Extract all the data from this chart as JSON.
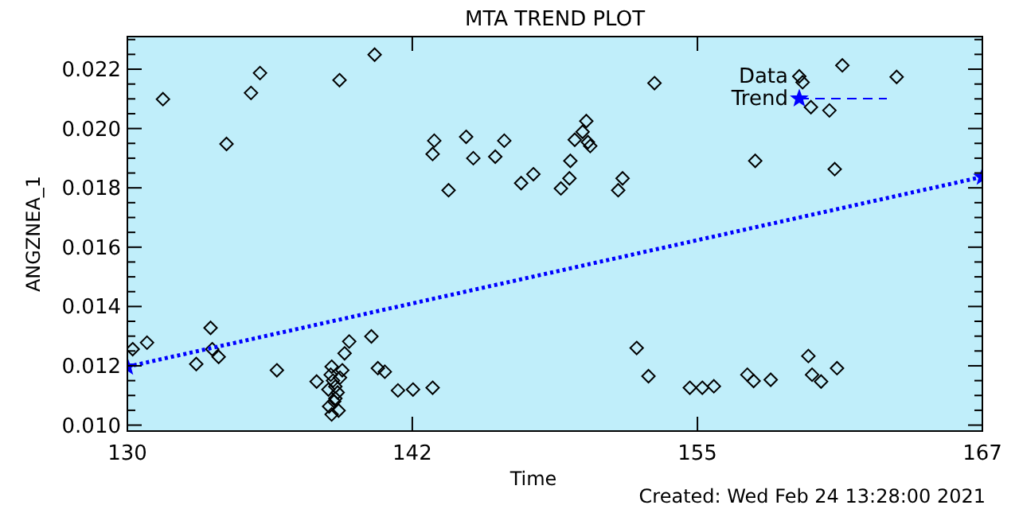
{
  "chart_data": {
    "type": "scatter",
    "title": "MTA TREND PLOT",
    "xlabel": "Time",
    "ylabel": "ANGZNEA_1",
    "annotations": [
      "Created: Wed Feb 24 13:28:00 2021"
    ],
    "xlim": [
      130,
      167
    ],
    "xticks": [
      130,
      {
        "value": 142.33,
        "label": "142"
      },
      {
        "value": 154.67,
        "label": "155"
      },
      167
    ],
    "ylim": [
      0.0098,
      0.0231
    ],
    "yticks": [
      {
        "value": 0.01,
        "label": "0.010"
      },
      {
        "value": 0.0105,
        "label": null
      },
      {
        "value": 0.011,
        "label": null
      },
      {
        "value": 0.0115,
        "label": null
      },
      {
        "value": 0.012,
        "label": "0.012"
      },
      {
        "value": 0.0125,
        "label": null
      },
      {
        "value": 0.013,
        "label": null
      },
      {
        "value": 0.0135,
        "label": null
      },
      {
        "value": 0.014,
        "label": "0.014"
      },
      {
        "value": 0.0145,
        "label": null
      },
      {
        "value": 0.015,
        "label": null
      },
      {
        "value": 0.0155,
        "label": null
      },
      {
        "value": 0.016,
        "label": "0.016"
      },
      {
        "value": 0.0165,
        "label": null
      },
      {
        "value": 0.017,
        "label": null
      },
      {
        "value": 0.0175,
        "label": null
      },
      {
        "value": 0.018,
        "label": "0.018"
      },
      {
        "value": 0.0185,
        "label": null
      },
      {
        "value": 0.019,
        "label": null
      },
      {
        "value": 0.0195,
        "label": null
      },
      {
        "value": 0.02,
        "label": "0.020"
      },
      {
        "value": 0.0205,
        "label": null
      },
      {
        "value": 0.021,
        "label": null
      },
      {
        "value": 0.0215,
        "label": null
      },
      {
        "value": 0.022,
        "label": "0.022"
      },
      {
        "value": 0.0225,
        "label": null
      },
      {
        "value": 0.023,
        "label": null
      }
    ],
    "grid": false,
    "legend": "top right",
    "series": [
      {
        "name": "Data",
        "marker": "diamond",
        "color": "#000000",
        "x": [
          130.23,
          130.85,
          131.54,
          132.98,
          133.6,
          133.67,
          133.95,
          134.29,
          135.35,
          135.74,
          136.47,
          138.19,
          138.84,
          138.73,
          138.84,
          139.14,
          138.7,
          138.9,
          139.0,
          139.1,
          138.8,
          139.0,
          139.2,
          138.95,
          139.3,
          139.18,
          139.4,
          139.6,
          140.56,
          140.7,
          140.84,
          141.14,
          141.71,
          142.36,
          143.21,
          143.21,
          143.28,
          143.9,
          144.66,
          144.97,
          145.92,
          146.31,
          147.04,
          147.57,
          148.76,
          149.13,
          149.17,
          149.36,
          149.7,
          149.86,
          149.93,
          150.03,
          151.24,
          151.43,
          152.04,
          152.55,
          152.81,
          154.34,
          154.88,
          155.38,
          156.83,
          157.1,
          157.17,
          157.84,
          159.22,
          159.47,
          159.58,
          159.63,
          160.02,
          160.38,
          160.61,
          160.71,
          160.94,
          163.29
        ],
        "values": [
          0.01256,
          0.01278,
          0.02099,
          0.01206,
          0.01328,
          0.01256,
          0.0123,
          0.01948,
          0.0212,
          0.02187,
          0.01185,
          0.01147,
          0.01197,
          0.01063,
          0.01036,
          0.01049,
          0.0112,
          0.0115,
          0.0113,
          0.0111,
          0.0117,
          0.0109,
          0.0116,
          0.0108,
          0.01185,
          0.02163,
          0.01242,
          0.01282,
          0.01299,
          0.02249,
          0.01192,
          0.0118,
          0.01117,
          0.0112,
          0.01126,
          0.01914,
          0.01959,
          0.01792,
          0.01972,
          0.019,
          0.01905,
          0.01959,
          0.01816,
          0.01846,
          0.01798,
          0.01832,
          0.01891,
          0.01962,
          0.01989,
          0.02025,
          0.01954,
          0.01941,
          0.01792,
          0.01832,
          0.0126,
          0.01165,
          0.02153,
          0.01126,
          0.01126,
          0.01131,
          0.0117,
          0.01149,
          0.01891,
          0.01153,
          0.02156,
          0.01233,
          0.02072,
          0.0117,
          0.01147,
          0.02061,
          0.01863,
          0.01192,
          0.02213,
          0.02174
        ]
      },
      {
        "name": "Trend",
        "type": "line",
        "marker": "star",
        "line_style": "dotted",
        "color": "#0000ff",
        "x": [
          130,
          167
        ],
        "values": [
          0.01197,
          0.01837
        ]
      }
    ]
  }
}
